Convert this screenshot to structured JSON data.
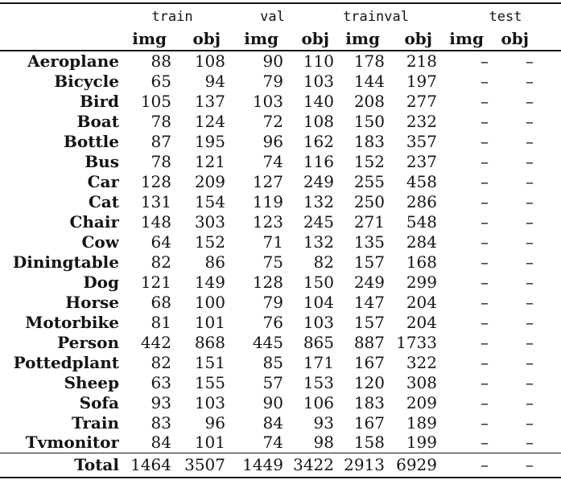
{
  "page": {
    "background": "#ffffff",
    "text_color": "#141414"
  },
  "table": {
    "groups": [
      {
        "label": "train",
        "columns": [
          "img",
          "obj"
        ]
      },
      {
        "label": "val",
        "columns": [
          "img",
          "obj"
        ]
      },
      {
        "label": "trainval",
        "columns": [
          "img",
          "obj"
        ]
      },
      {
        "label": "test",
        "columns": [
          "img",
          "obj"
        ]
      }
    ],
    "rows": [
      {
        "label": "Aeroplane",
        "values": [
          "88",
          "108",
          "90",
          "110",
          "178",
          "218",
          "–",
          "–"
        ]
      },
      {
        "label": "Bicycle",
        "values": [
          "65",
          "94",
          "79",
          "103",
          "144",
          "197",
          "–",
          "–"
        ]
      },
      {
        "label": "Bird",
        "values": [
          "105",
          "137",
          "103",
          "140",
          "208",
          "277",
          "–",
          "–"
        ]
      },
      {
        "label": "Boat",
        "values": [
          "78",
          "124",
          "72",
          "108",
          "150",
          "232",
          "–",
          "–"
        ]
      },
      {
        "label": "Bottle",
        "values": [
          "87",
          "195",
          "96",
          "162",
          "183",
          "357",
          "–",
          "–"
        ]
      },
      {
        "label": "Bus",
        "values": [
          "78",
          "121",
          "74",
          "116",
          "152",
          "237",
          "–",
          "–"
        ]
      },
      {
        "label": "Car",
        "values": [
          "128",
          "209",
          "127",
          "249",
          "255",
          "458",
          "–",
          "–"
        ]
      },
      {
        "label": "Cat",
        "values": [
          "131",
          "154",
          "119",
          "132",
          "250",
          "286",
          "–",
          "–"
        ]
      },
      {
        "label": "Chair",
        "values": [
          "148",
          "303",
          "123",
          "245",
          "271",
          "548",
          "–",
          "–"
        ]
      },
      {
        "label": "Cow",
        "values": [
          "64",
          "152",
          "71",
          "132",
          "135",
          "284",
          "–",
          "–"
        ]
      },
      {
        "label": "Diningtable",
        "values": [
          "82",
          "86",
          "75",
          "82",
          "157",
          "168",
          "–",
          "–"
        ]
      },
      {
        "label": "Dog",
        "values": [
          "121",
          "149",
          "128",
          "150",
          "249",
          "299",
          "–",
          "–"
        ]
      },
      {
        "label": "Horse",
        "values": [
          "68",
          "100",
          "79",
          "104",
          "147",
          "204",
          "–",
          "–"
        ]
      },
      {
        "label": "Motorbike",
        "values": [
          "81",
          "101",
          "76",
          "103",
          "157",
          "204",
          "–",
          "–"
        ]
      },
      {
        "label": "Person",
        "values": [
          "442",
          "868",
          "445",
          "865",
          "887",
          "1733",
          "–",
          "–"
        ]
      },
      {
        "label": "Pottedplant",
        "values": [
          "82",
          "151",
          "85",
          "171",
          "167",
          "322",
          "–",
          "–"
        ]
      },
      {
        "label": "Sheep",
        "values": [
          "63",
          "155",
          "57",
          "153",
          "120",
          "308",
          "–",
          "–"
        ]
      },
      {
        "label": "Sofa",
        "values": [
          "93",
          "103",
          "90",
          "106",
          "183",
          "209",
          "–",
          "–"
        ]
      },
      {
        "label": "Train",
        "values": [
          "83",
          "96",
          "84",
          "93",
          "167",
          "189",
          "–",
          "–"
        ]
      },
      {
        "label": "Tvmonitor",
        "values": [
          "84",
          "101",
          "74",
          "98",
          "158",
          "199",
          "–",
          "–"
        ]
      }
    ],
    "total": {
      "label": "Total",
      "values": [
        "1464",
        "3507",
        "1449",
        "3422",
        "2913",
        "6929",
        "–",
        "–"
      ]
    }
  }
}
